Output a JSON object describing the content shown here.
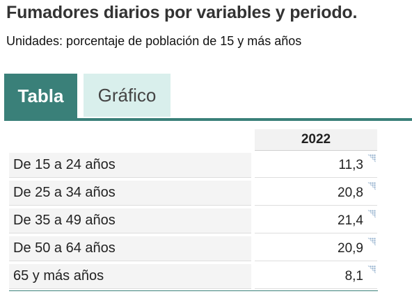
{
  "page": {
    "title": "Fumadores diarios por variables y periodo.",
    "subtitle": "Unidades: porcentaje de población de 15 y más años"
  },
  "tabs": [
    {
      "label": "Tabla",
      "active": true
    },
    {
      "label": "Gráfico",
      "active": false
    }
  ],
  "table": {
    "columns": [
      "2022"
    ],
    "rows": [
      {
        "label": "De 15 a 24 años",
        "value": "11,3"
      },
      {
        "label": "De 25 a 34 años",
        "value": "20,8"
      },
      {
        "label": "De 35 a 49 años",
        "value": "21,4"
      },
      {
        "label": "De 50 a 64 años",
        "value": "20,9"
      },
      {
        "label": "65 y más años",
        "value": "8,1"
      }
    ]
  },
  "colors": {
    "accent": "#3a8079",
    "tab_inactive_bg": "#d9efec",
    "header_bg": "#f2f2f2",
    "row_label_bg": "#f4f4f4"
  },
  "icons": {
    "cell_corner": "cell-note-corner-icon"
  }
}
